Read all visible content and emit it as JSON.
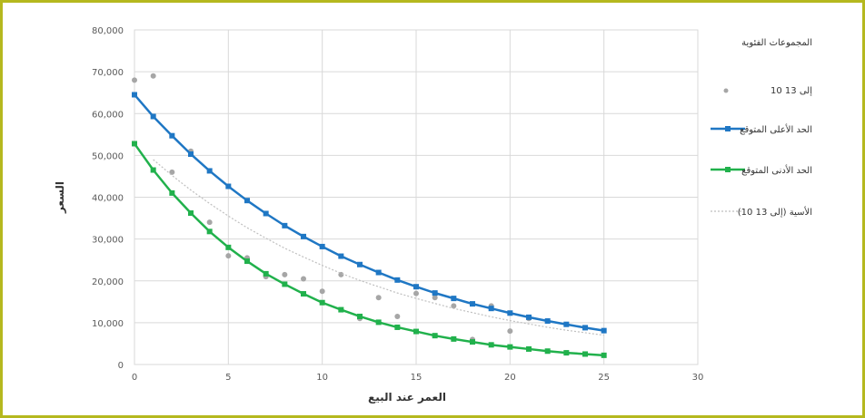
{
  "chart_data": {
    "type": "line",
    "xlabel": "العمر عند البيع",
    "ylabel": "السعر",
    "xlim": [
      0,
      30
    ],
    "ylim": [
      0,
      80000
    ],
    "x_ticks": [
      "0",
      "5",
      "10",
      "15",
      "20",
      "25",
      "30"
    ],
    "y_ticks": [
      "0",
      "10,000",
      "20,000",
      "30,000",
      "40,000",
      "50,000",
      "60,000",
      "70,000",
      "80,000"
    ],
    "grid": true,
    "legend_position": "right",
    "legend_title": "المجموعات الفئوية",
    "series": [
      {
        "name": "10 إلى 13",
        "kind": "scatter",
        "color": "#a6a6a6",
        "points": [
          [
            0,
            68000
          ],
          [
            1,
            69000
          ],
          [
            2,
            46000
          ],
          [
            3,
            51000
          ],
          [
            4,
            34000
          ],
          [
            5,
            26000
          ],
          [
            6,
            25500
          ],
          [
            7,
            21000
          ],
          [
            8,
            21500
          ],
          [
            9,
            20500
          ],
          [
            10,
            17500
          ],
          [
            11,
            21500
          ],
          [
            12,
            11000
          ],
          [
            13,
            16000
          ],
          [
            14,
            11500
          ],
          [
            15,
            17000
          ],
          [
            16,
            16000
          ],
          [
            17,
            14000
          ],
          [
            18,
            6000
          ],
          [
            19,
            14000
          ],
          [
            20,
            8000
          ],
          [
            21,
            11000
          ]
        ]
      },
      {
        "name": "الحد الأعلى المتوقع",
        "kind": "line-markers",
        "color": "#1f77c4",
        "x": [
          0,
          1,
          2,
          3,
          4,
          5,
          6,
          7,
          8,
          9,
          10,
          11,
          12,
          13,
          14,
          15,
          16,
          17,
          18,
          19,
          20,
          21,
          22,
          23,
          24,
          25
        ],
        "values": [
          64500,
          59300,
          54700,
          50300,
          46300,
          42600,
          39200,
          36100,
          33200,
          30600,
          28200,
          25900,
          23900,
          22000,
          20200,
          18600,
          17100,
          15800,
          14500,
          13400,
          12300,
          11300,
          10400,
          9600,
          8800,
          8100
        ]
      },
      {
        "name": "الحد الأدنى المتوقع",
        "kind": "line-markers",
        "color": "#21b14c",
        "x": [
          0,
          1,
          2,
          3,
          4,
          5,
          6,
          7,
          8,
          9,
          10,
          11,
          12,
          13,
          14,
          15,
          16,
          17,
          18,
          19,
          20,
          21,
          22,
          23,
          24,
          25
        ],
        "values": [
          52800,
          46500,
          41000,
          36200,
          31800,
          28000,
          24700,
          21700,
          19200,
          16900,
          14800,
          13100,
          11500,
          10100,
          8900,
          7900,
          6900,
          6100,
          5400,
          4700,
          4200,
          3700,
          3200,
          2800,
          2500,
          2200
        ]
      },
      {
        "name": "(10 إلى 13) الأسية",
        "kind": "trend",
        "color": "#bfbfbf",
        "x": [
          1,
          2,
          3,
          4,
          5,
          6,
          7,
          8,
          9,
          10,
          11,
          12,
          13,
          14,
          15,
          16,
          17,
          18,
          19,
          20,
          21,
          22,
          23,
          24,
          25
        ],
        "values": [
          49000,
          45200,
          41700,
          38500,
          35500,
          32700,
          30200,
          27800,
          25700,
          23700,
          21800,
          20100,
          18600,
          17100,
          15800,
          14600,
          13400,
          12400,
          11400,
          10500,
          9700,
          8900,
          8200,
          7600,
          7000
        ]
      }
    ]
  }
}
